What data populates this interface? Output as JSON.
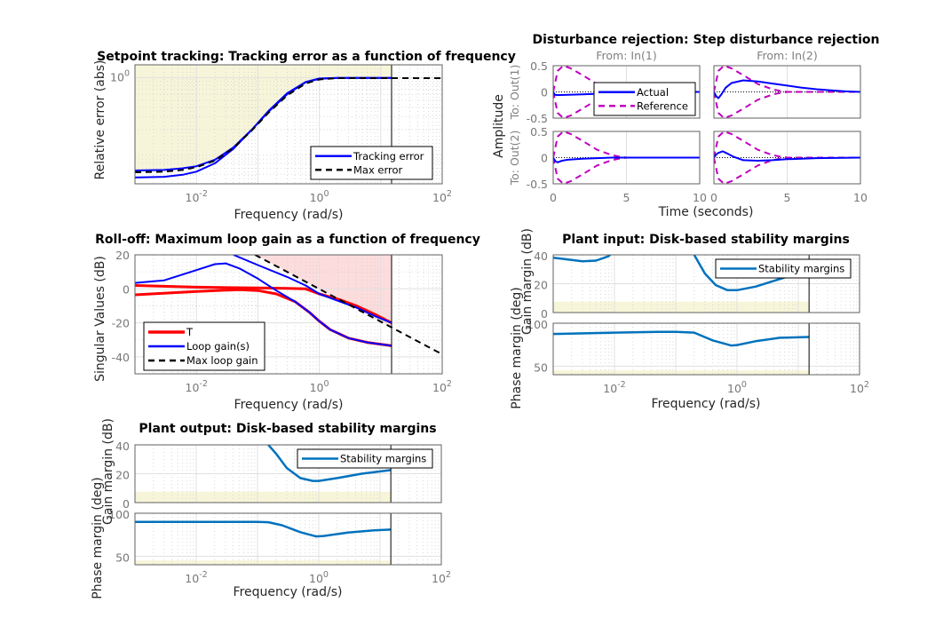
{
  "chart_data": [
    {
      "id": "tracking",
      "type": "line",
      "title": "Setpoint tracking: Tracking error as a function of frequency",
      "xlabel": "Frequency (rad/s)",
      "ylabel": "Relative error (abs)",
      "xscale": "log",
      "yscale": "log",
      "xlim": [
        0.001,
        100
      ],
      "ylim": [
        0.037,
        1.5
      ],
      "xticks": [
        {
          "v": 0.01,
          "base": "10",
          "exp": "-2"
        },
        {
          "v": 1,
          "base": "10",
          "exp": "0"
        },
        {
          "v": 100,
          "base": "10",
          "exp": "2"
        }
      ],
      "yticks": [
        {
          "v": 1,
          "base": "10",
          "exp": "0"
        }
      ],
      "cutoff": 15,
      "shade": {
        "kind": "above-max",
        "color": "#f7f5d9"
      },
      "grid": true,
      "legend": {
        "placement": "bottom-right",
        "entries": [
          {
            "label": "Tracking error",
            "color": "#0000ff",
            "style": "solid"
          },
          {
            "label": "Max error",
            "color": "#000000",
            "style": "dashed"
          }
        ]
      },
      "series": [
        {
          "name": "Tracking error (1)",
          "color": "#0000ff",
          "style": "solid",
          "x": [
            0.001,
            0.003,
            0.006,
            0.01,
            0.02,
            0.04,
            0.08,
            0.15,
            0.3,
            0.6,
            1,
            2,
            5,
            15
          ],
          "y": [
            0.056,
            0.057,
            0.06,
            0.064,
            0.078,
            0.115,
            0.2,
            0.35,
            0.6,
            0.87,
            0.97,
            1.0,
            1.0,
            1.0
          ]
        },
        {
          "name": "Tracking error (2)",
          "color": "#0000ff",
          "style": "solid",
          "x": [
            0.001,
            0.003,
            0.006,
            0.01,
            0.02,
            0.04,
            0.08,
            0.15,
            0.3,
            0.6,
            1,
            2,
            5,
            15
          ],
          "y": [
            0.045,
            0.046,
            0.049,
            0.054,
            0.07,
            0.11,
            0.2,
            0.36,
            0.62,
            0.88,
            0.98,
            1.0,
            1.0,
            1.0
          ]
        },
        {
          "name": "Max error",
          "color": "#000000",
          "style": "dashed",
          "x": [
            0.001,
            0.003,
            0.006,
            0.01,
            0.02,
            0.04,
            0.08,
            0.15,
            0.3,
            0.6,
            1,
            2,
            5,
            15,
            100
          ],
          "y": [
            0.053,
            0.054,
            0.057,
            0.062,
            0.076,
            0.113,
            0.195,
            0.34,
            0.58,
            0.84,
            0.95,
            0.99,
            0.99,
            0.99,
            0.99
          ]
        }
      ]
    },
    {
      "id": "disturbance",
      "type": "line",
      "title": "Disturbance rejection: Step disturbance rejection",
      "xlabel": "Time (seconds)",
      "ylabel": "Amplitude",
      "xlim": [
        0,
        10
      ],
      "ylim": [
        -0.5,
        0.5
      ],
      "xticks": [
        0,
        5,
        10
      ],
      "yticks": [
        "-0.5",
        "0",
        "0.5"
      ],
      "columns": [
        "From: In(1)",
        "From: In(2)"
      ],
      "rows": [
        "To: Out(1)",
        "To: Out(2)"
      ],
      "legend": {
        "placement": "inside-top-left-panel",
        "entries": [
          {
            "label": "Actual",
            "color": "#0000ff",
            "style": "solid"
          },
          {
            "label": "Reference",
            "color": "#bf00bf",
            "style": "dashed"
          }
        ]
      },
      "reference_envelope": {
        "t": [
          0,
          0.3,
          0.7,
          1.2,
          2,
          3,
          4,
          4.5,
          5,
          7,
          10
        ],
        "upper": [
          0,
          0.4,
          0.5,
          0.45,
          0.32,
          0.15,
          0.05,
          0.02,
          0,
          0,
          0
        ]
      },
      "panels": [
        {
          "row": 0,
          "col": 0,
          "actual": {
            "t": [
              0,
              0.1,
              0.2,
              0.5,
              1,
              2,
              3,
              4,
              5,
              7,
              10
            ],
            "y": [
              0,
              -0.05,
              -0.06,
              -0.06,
              -0.055,
              -0.045,
              -0.035,
              -0.02,
              -0.01,
              0,
              0
            ]
          }
        },
        {
          "row": 0,
          "col": 1,
          "actual": {
            "t": [
              0,
              0.15,
              0.3,
              0.5,
              0.8,
              1.2,
              2,
              3,
              4,
              5,
              6,
              7,
              8,
              9,
              10
            ],
            "y": [
              0,
              -0.08,
              -0.12,
              -0.05,
              0.08,
              0.17,
              0.22,
              0.2,
              0.16,
              0.12,
              0.08,
              0.05,
              0.03,
              0.01,
              0
            ]
          }
        },
        {
          "row": 1,
          "col": 0,
          "actual": {
            "t": [
              0,
              0.15,
              0.3,
              0.6,
              1,
              2,
              3,
              4,
              5,
              10
            ],
            "y": [
              0,
              -0.07,
              -0.09,
              -0.06,
              -0.04,
              -0.02,
              -0.01,
              0,
              0,
              0
            ]
          }
        },
        {
          "row": 1,
          "col": 1,
          "actual": {
            "t": [
              0,
              0.15,
              0.3,
              0.6,
              0.9,
              1.3,
              2,
              3,
              4,
              5,
              6,
              7,
              10
            ],
            "y": [
              0,
              0.06,
              0.09,
              0.12,
              0.08,
              0.02,
              -0.05,
              -0.06,
              -0.05,
              -0.03,
              -0.02,
              -0.01,
              0
            ]
          }
        }
      ]
    },
    {
      "id": "rolloff",
      "type": "line",
      "title": "Roll-off: Maximum loop gain as a function of frequency",
      "xlabel": "Frequency (rad/s)",
      "ylabel": "Singular Values (dB)",
      "xscale": "log",
      "xlim": [
        0.001,
        100
      ],
      "ylim": [
        -50,
        20
      ],
      "xticks": [
        {
          "v": 0.01,
          "base": "10",
          "exp": "-2"
        },
        {
          "v": 1,
          "base": "10",
          "exp": "0"
        },
        {
          "v": 100,
          "base": "10",
          "exp": "2"
        }
      ],
      "yticks": [
        20,
        0,
        -20,
        -40
      ],
      "cutoff": 15,
      "shade": {
        "kind": "above-max",
        "color": "#fcdcdc"
      },
      "grid": true,
      "legend": {
        "placement": "bottom-left",
        "entries": [
          {
            "label": "T",
            "color": "#ff0000",
            "style": "solid-thick"
          },
          {
            "label": "Loop gain(s)",
            "color": "#0000ff",
            "style": "solid"
          },
          {
            "label": "Max loop gain",
            "color": "#000000",
            "style": "dashed"
          }
        ]
      },
      "series": [
        {
          "name": "T (1)",
          "color": "#ff0000",
          "style": "thick",
          "x": [
            0.001,
            0.01,
            0.1,
            0.3,
            0.6,
            1,
            2,
            4,
            8,
            15
          ],
          "y": [
            2,
            1,
            0.5,
            0.3,
            0,
            -3,
            -6,
            -10,
            -15,
            -20
          ]
        },
        {
          "name": "T (2)",
          "color": "#ff0000",
          "style": "thick",
          "x": [
            0.001,
            0.01,
            0.05,
            0.1,
            0.2,
            0.4,
            0.7,
            1,
            1.5,
            3,
            6,
            15
          ],
          "y": [
            -3.5,
            -1.5,
            -0.5,
            -1,
            -3,
            -7.5,
            -14,
            -19,
            -24,
            -29,
            -31.5,
            -33.5
          ]
        },
        {
          "name": "Loop gain (1)",
          "color": "#0000ff",
          "style": "solid",
          "x": [
            0.001,
            0.003,
            0.01,
            0.02,
            0.03,
            0.05,
            0.1,
            0.2,
            0.4,
            0.7,
            1,
            1.5,
            3,
            6,
            15
          ],
          "y": [
            3.5,
            5,
            11,
            14.5,
            15,
            12,
            6,
            -1,
            -7.5,
            -14,
            -19,
            -24,
            -29,
            -31.5,
            -33.5
          ]
        },
        {
          "name": "Loop gain (2)",
          "color": "#0000ff",
          "style": "solid",
          "x": [
            0.04,
            0.1,
            0.3,
            0.6,
            1,
            2,
            4,
            8,
            15
          ],
          "y": [
            20,
            14,
            7,
            2,
            -3,
            -7,
            -11,
            -16,
            -20
          ]
        },
        {
          "name": "Max loop gain",
          "color": "#000000",
          "style": "dashed",
          "x": [
            0.09,
            100
          ],
          "y": [
            20,
            -38.5
          ]
        }
      ]
    },
    {
      "id": "plant-input",
      "type": "line",
      "title": "Plant input: Disk-based stability margins",
      "xlabel": "Frequency (rad/s)",
      "xscale": "log",
      "xlim": [
        0.001,
        100
      ],
      "xticks": [
        {
          "v": 0.01,
          "base": "10",
          "exp": "-2"
        },
        {
          "v": 1,
          "base": "10",
          "exp": "0"
        },
        {
          "v": 100,
          "base": "10",
          "exp": "2"
        }
      ],
      "cutoff": 15,
      "legend": {
        "placement": "top-right",
        "entries": [
          {
            "label": "Stability margins",
            "color": "#0072bd",
            "style": "solid"
          }
        ]
      },
      "gain": {
        "ylabel": "Gain margin (dB)",
        "ylim": [
          0,
          40
        ],
        "yticks": [
          40,
          20,
          0
        ],
        "min_required": 7.6,
        "x": [
          0.001,
          0.002,
          0.003,
          0.005,
          0.008,
          0.0085
        ],
        "y": [
          38,
          36.5,
          35.5,
          36,
          39,
          40
        ],
        "x2": [
          0.2,
          0.3,
          0.45,
          0.7,
          1,
          2,
          4,
          8
        ],
        "y2": [
          40,
          27,
          19,
          15.5,
          15.5,
          18,
          22,
          26
        ]
      },
      "phase": {
        "ylabel": "Phase margin (deg)",
        "ylim": [
          40,
          100
        ],
        "yticks": [
          100,
          50
        ],
        "min_required": 45,
        "x": [
          0.001,
          0.01,
          0.05,
          0.1,
          0.2,
          0.4,
          0.8,
          1,
          2,
          5,
          15
        ],
        "y": [
          87.5,
          89,
          90,
          90,
          89,
          80,
          74,
          74.5,
          79,
          83,
          84
        ]
      }
    },
    {
      "id": "plant-output",
      "type": "line",
      "title": "Plant output: Disk-based stability margins",
      "xlabel": "Frequency (rad/s)",
      "xscale": "log",
      "xlim": [
        0.001,
        100
      ],
      "xticks": [
        {
          "v": 0.01,
          "base": "10",
          "exp": "-2"
        },
        {
          "v": 1,
          "base": "10",
          "exp": "0"
        },
        {
          "v": 100,
          "base": "10",
          "exp": "2"
        }
      ],
      "cutoff": 15,
      "legend": {
        "placement": "top-right",
        "entries": [
          {
            "label": "Stability margins",
            "color": "#0072bd",
            "style": "solid"
          }
        ]
      },
      "gain": {
        "ylabel": "Gain margin (dB)",
        "ylim": [
          0,
          40
        ],
        "yticks": [
          40,
          20,
          0
        ],
        "min_required": 7.6,
        "x": [
          0.15,
          0.2,
          0.3,
          0.5,
          0.8,
          1,
          2,
          5,
          15
        ],
        "y": [
          40,
          34,
          24,
          17,
          15,
          15,
          17,
          20,
          22.5
        ]
      },
      "phase": {
        "ylabel": "Phase margin (deg)",
        "ylim": [
          40,
          100
        ],
        "yticks": [
          100,
          50
        ],
        "min_required": 45,
        "x": [
          0.001,
          0.01,
          0.1,
          0.15,
          0.25,
          0.5,
          0.9,
          1.2,
          3,
          8,
          15
        ],
        "y": [
          90,
          90,
          90,
          89.5,
          86,
          78,
          73,
          73.5,
          77.5,
          80,
          81
        ]
      }
    }
  ]
}
